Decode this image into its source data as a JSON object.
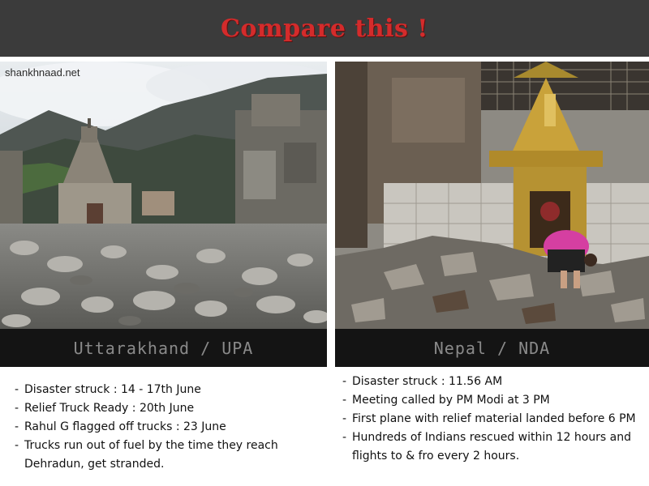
{
  "header": {
    "title": "Compare this !",
    "bg_color": "#3b3b3b",
    "title_color": "#d42b2b"
  },
  "left_panel": {
    "watermark": "shankhnaad.net",
    "caption": "Uttarakhand / UPA",
    "image": "flood-damaged temple surrounded by boulders",
    "points": [
      "Disaster struck : 14 - 17th June",
      "Relief Truck Ready : 20th June",
      "Rahul G flagged off trucks : 23 June",
      "Trucks run out of fuel by the time they reach Dehradun, get stranded."
    ]
  },
  "right_panel": {
    "caption": "Nepal / NDA",
    "image": "person kneeling in damaged shrine",
    "points": [
      "Disaster struck : 11.56 AM",
      "Meeting called by PM Modi at 3 PM",
      "First plane with relief material landed before 6 PM",
      "Hundreds of Indians rescued within 12 hours and flights to & fro every 2 hours."
    ]
  }
}
